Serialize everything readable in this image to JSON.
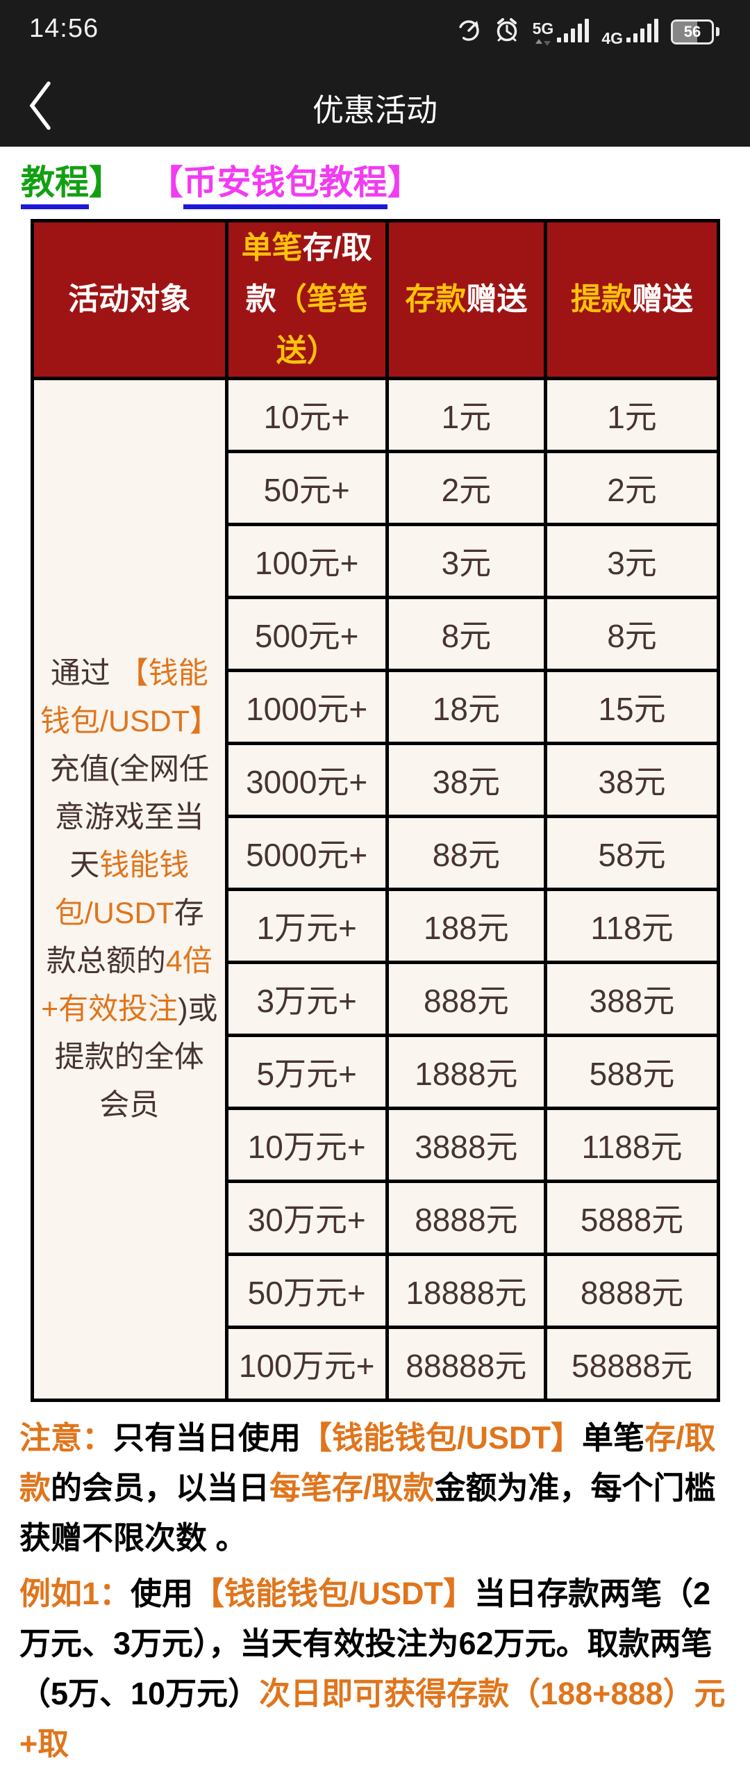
{
  "status_bar": {
    "time": "14:56",
    "network_5g_label": "5G",
    "network_4g_label": "4G",
    "battery_percent": "56",
    "icons": [
      "data-saver-icon",
      "alarm-icon",
      "signal-5g-bars",
      "signal-4g-bars",
      "battery-indicator"
    ]
  },
  "nav": {
    "title": "优惠活动",
    "back_icon": "chevron-left"
  },
  "links": {
    "tutorial_partial": {
      "label": "教程",
      "suffix": "】"
    },
    "binance_wallet": {
      "prefix": "【",
      "label": "币安钱包教程",
      "suffix": "】"
    }
  },
  "colors": {
    "header_red": "#9e1414",
    "gold": "#ffc30b",
    "orange": "#e0751c",
    "cell_bg": "#faf5ef",
    "cell_text": "#473431",
    "link_green": "#12a012",
    "link_magenta": "#f23bf2",
    "link_underline_blue": "#1d18da"
  },
  "table": {
    "headers": {
      "audience": "活动对象",
      "per_transaction": [
        {
          "text": "单笔",
          "style": "gold"
        },
        {
          "text": "存/取款",
          "style": "white"
        },
        {
          "text": "（笔笔送）",
          "style": "gold"
        }
      ],
      "deposit_bonus": [
        {
          "text": "存款",
          "style": "gold"
        },
        {
          "text": "赠送",
          "style": "white"
        }
      ],
      "withdraw_bonus": [
        {
          "text": "提款",
          "style": "gold"
        },
        {
          "text": "赠送",
          "style": "white"
        }
      ]
    },
    "audience_cell": [
      {
        "text": "通过 ",
        "style": "dark"
      },
      {
        "text": "【钱能钱包/USDT】",
        "style": "orange"
      },
      {
        "text": "充值(全网任意游戏至当天",
        "style": "dark"
      },
      {
        "text": "钱能钱包/USDT",
        "style": "orange"
      },
      {
        "text": "存款总额的",
        "style": "dark"
      },
      {
        "text": "4倍+有效投注",
        "style": "orange"
      },
      {
        "text": ")或提款的全体会员",
        "style": "dark"
      }
    ],
    "rows": [
      {
        "threshold": "10元+",
        "deposit": "1元",
        "withdraw": "1元"
      },
      {
        "threshold": "50元+",
        "deposit": "2元",
        "withdraw": "2元"
      },
      {
        "threshold": "100元+",
        "deposit": "3元",
        "withdraw": "3元"
      },
      {
        "threshold": "500元+",
        "deposit": "8元",
        "withdraw": "8元"
      },
      {
        "threshold": "1000元+",
        "deposit": "18元",
        "withdraw": "15元"
      },
      {
        "threshold": "3000元+",
        "deposit": "38元",
        "withdraw": "38元"
      },
      {
        "threshold": "5000元+",
        "deposit": "88元",
        "withdraw": "58元"
      },
      {
        "threshold": "1万元+",
        "deposit": "188元",
        "withdraw": "118元"
      },
      {
        "threshold": "3万元+",
        "deposit": "888元",
        "withdraw": "388元"
      },
      {
        "threshold": "5万元+",
        "deposit": "1888元",
        "withdraw": "588元"
      },
      {
        "threshold": "10万元+",
        "deposit": "3888元",
        "withdraw": "1188元"
      },
      {
        "threshold": "30万元+",
        "deposit": "8888元",
        "withdraw": "5888元"
      },
      {
        "threshold": "50万元+",
        "deposit": "18888元",
        "withdraw": "8888元"
      },
      {
        "threshold": "100万元+",
        "deposit": "88888元",
        "withdraw": "58888元"
      }
    ]
  },
  "notes": [
    {
      "segments": [
        {
          "text": "注意：",
          "style": "orange"
        },
        {
          "text": "只有当日使用",
          "style": "black"
        },
        {
          "text": "【钱能钱包/USDT】",
          "style": "orange"
        },
        {
          "text": "单笔",
          "style": "black"
        },
        {
          "text": "存/取款",
          "style": "orange"
        },
        {
          "text": "的会员，以当日",
          "style": "black"
        },
        {
          "text": "每笔存/取款",
          "style": "orange"
        },
        {
          "text": "金额为准，每个门槛获赠不限次数 。",
          "style": "black"
        }
      ]
    },
    {
      "segments": [
        {
          "text": "例如1：",
          "style": "orange"
        },
        {
          "text": "使用",
          "style": "black"
        },
        {
          "text": "【钱能钱包/USDT】",
          "style": "orange"
        },
        {
          "text": "当日存款两笔（2万元、3万元），当天有效投注为62万元。取款两笔（5万、10万元）",
          "style": "black"
        },
        {
          "text": "次日即可获得存款（188+888）元+取",
          "style": "orange"
        }
      ]
    }
  ]
}
